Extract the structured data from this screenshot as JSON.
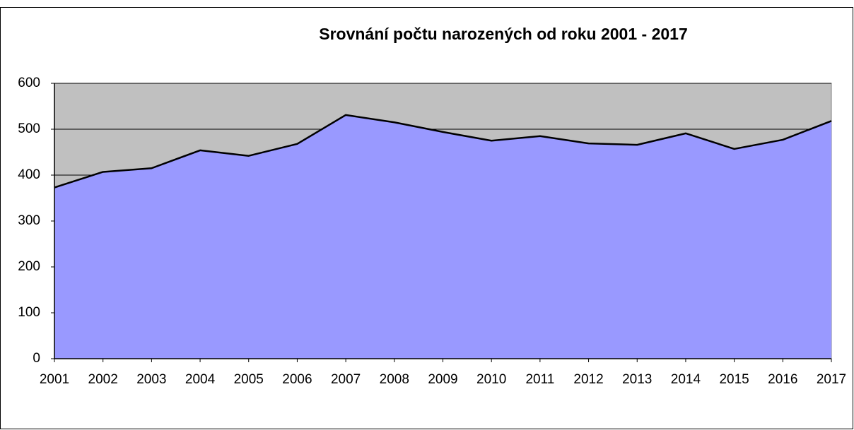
{
  "chart_data": {
    "type": "area",
    "title": "Srovnání počtu narozených od roku 2001 - 2017",
    "categories": [
      "2001",
      "2002",
      "2003",
      "2004",
      "2005",
      "2006",
      "2007",
      "2008",
      "2009",
      "2010",
      "2011",
      "2012",
      "2013",
      "2014",
      "2015",
      "2016",
      "2017"
    ],
    "values": [
      373,
      407,
      415,
      454,
      442,
      468,
      531,
      515,
      494,
      475,
      485,
      469,
      466,
      491,
      457,
      477,
      518
    ],
    "color": "#9999ff",
    "line_color": "#000000",
    "background": "#c0c0c0",
    "ylim": [
      0,
      600
    ],
    "yticks": [
      0,
      100,
      200,
      300,
      400,
      500,
      600
    ],
    "grid": true
  }
}
